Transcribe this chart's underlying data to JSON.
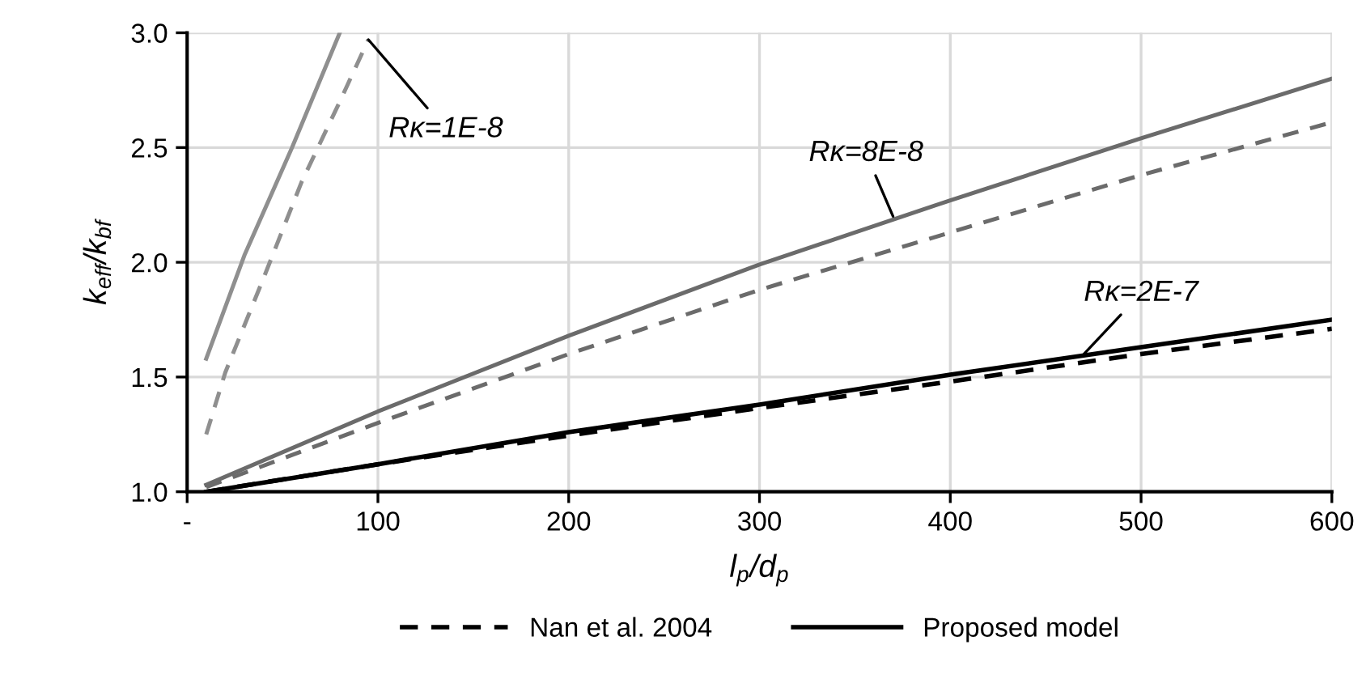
{
  "chart_data": {
    "type": "line",
    "xlabel": "l$_{p}$/d$_{p}$",
    "ylabel": "k$_{eff}$/k$_{bf}$",
    "series": [
      {
        "color": "#8f8f8f",
        "line_style": "solid",
        "x": [
          10,
          30,
          55,
          80
        ],
        "values": [
          1.58,
          2.03,
          2.5,
          3.0
        ]
      },
      {
        "color": "#8f8f8f",
        "line_style": "dashed",
        "x": [
          10,
          20,
          40,
          60,
          80,
          95
        ],
        "values": [
          1.25,
          1.52,
          1.93,
          2.35,
          2.7,
          2.97
        ]
      },
      {
        "color": "#6b6b6b",
        "line_style": "solid",
        "x": [
          10,
          100,
          200,
          300,
          400,
          500,
          600
        ],
        "values": [
          1.03,
          1.35,
          1.68,
          1.99,
          2.27,
          2.54,
          2.8
        ]
      },
      {
        "color": "#6b6b6b",
        "line_style": "dashed",
        "x": [
          10,
          100,
          200,
          300,
          400,
          500,
          600
        ],
        "values": [
          1.02,
          1.3,
          1.6,
          1.88,
          2.13,
          2.38,
          2.61
        ]
      },
      {
        "name": "Nan et al. 2004",
        "color": "#000000",
        "line_style": "dashed",
        "x": [
          10,
          100,
          200,
          300,
          400,
          500,
          600
        ],
        "values": [
          1.0,
          1.12,
          1.245,
          1.365,
          1.48,
          1.6,
          1.71
        ]
      },
      {
        "name": "Proposed model",
        "color": "#000000",
        "line_style": "solid",
        "x": [
          10,
          100,
          200,
          300,
          400,
          500,
          600
        ],
        "values": [
          1.0,
          1.12,
          1.26,
          1.38,
          1.51,
          1.63,
          1.75
        ]
      }
    ],
    "annotations": [
      {
        "text": "Rκ=1E-8",
        "x": 95,
        "y": 2.97
      },
      {
        "text": "Rκ=8E-8",
        "x": 370,
        "y": 2.2
      },
      {
        "text": "Rκ=2E-7",
        "x": 470,
        "y": 1.6
      }
    ],
    "xlim": [
      0,
      600
    ],
    "xticks": [
      {
        "value": 0,
        "label": "-"
      },
      100,
      200,
      300,
      400,
      500,
      600
    ],
    "ylim": [
      1,
      3
    ],
    "yticks": [
      {
        "value": 1,
        "label": "1.0"
      },
      {
        "value": 1.5,
        "label": "1.5"
      },
      {
        "value": 2,
        "label": "2.0"
      },
      {
        "value": 2.5,
        "label": "2.5"
      },
      {
        "value": 3,
        "label": "3.0"
      }
    ],
    "grid": true,
    "legend": "bottom",
    "marker": "none"
  }
}
